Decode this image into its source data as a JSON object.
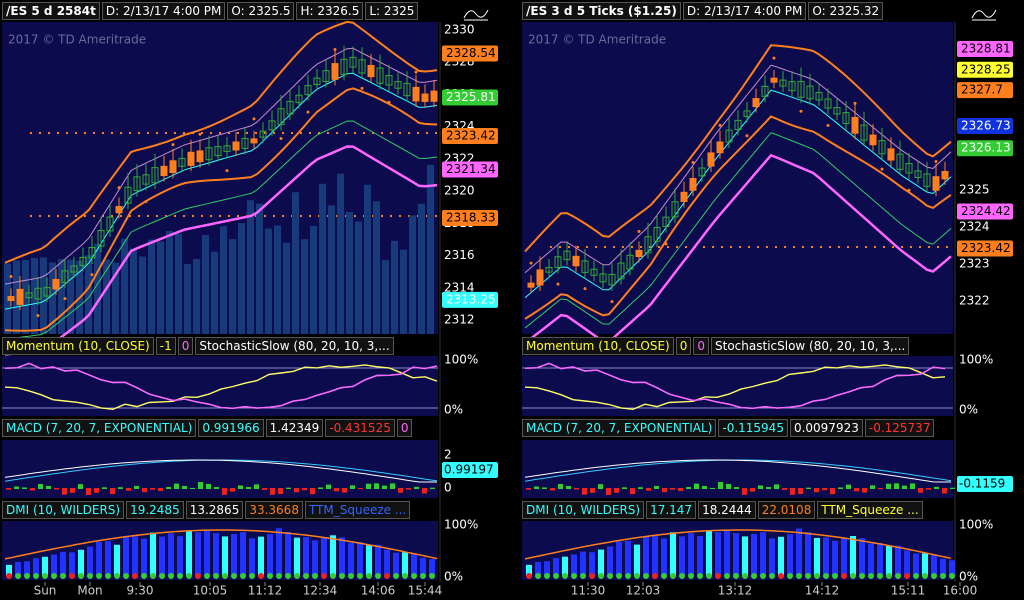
{
  "panels": [
    {
      "header": [
        "/ES 5 d 2584t",
        "D: 2/13/17 4:00 PM",
        "O: 2325.5",
        "H: 2326.5",
        "L: 2325"
      ],
      "watermark": "2017 © TD Ameritrade",
      "price_ticks": [
        "2330",
        "2328",
        "2326",
        "2324",
        "2322",
        "2320",
        "2318",
        "2316",
        "2314",
        "2312"
      ],
      "price_labels": [
        {
          "text": "2328.54",
          "color": "#ff7f1e"
        },
        {
          "text": "2325.81",
          "color": "#33cc33"
        },
        {
          "text": "2323.42",
          "color": "#ff7f1e"
        },
        {
          "text": "2321.34",
          "color": "#ff66ff"
        },
        {
          "text": "2318.33",
          "color": "#ff7f1e"
        },
        {
          "text": "2313.25",
          "color": "#33ffff"
        }
      ],
      "studies": [
        {
          "segments": [
            {
              "text": "Momentum (10, CLOSE)",
              "color": "#ffff33"
            },
            {
              "text": "-1",
              "color": "#ffff33"
            },
            {
              "text": "0",
              "color": "#ff66ff"
            },
            {
              "text": "StochasticSlow (80, 20, 10, 3,...",
              "color": "#ffffff"
            }
          ],
          "axis_labels": [
            {
              "text": "100%"
            },
            {
              "text": "0%"
            }
          ]
        },
        {
          "segments": [
            {
              "text": "MACD (7, 20, 7, EXPONENTIAL)",
              "color": "#33ffff"
            },
            {
              "text": "0.991966",
              "color": "#33ffff"
            },
            {
              "text": "1.42349",
              "color": "#ffffff"
            },
            {
              "text": "-0.431525",
              "color": "#ff3333"
            },
            {
              "text": "0",
              "color": "#ff66ff"
            }
          ],
          "axis_labels": [
            {
              "text": "2"
            },
            {
              "text": "0"
            },
            {
              "text": "0.99197",
              "box": "#33ffff"
            }
          ]
        },
        {
          "segments": [
            {
              "text": "DMI (10, WILDERS)",
              "color": "#33ffff"
            },
            {
              "text": "19.2485",
              "color": "#33ffff"
            },
            {
              "text": "13.2865",
              "color": "#ffffff"
            },
            {
              "text": "33.3668",
              "color": "#ff7f1e"
            },
            {
              "text": "TTM_Squeeze ...",
              "color": "#3366ff"
            }
          ],
          "axis_labels": [
            {
              "text": "100%"
            },
            {
              "text": "0%"
            }
          ]
        }
      ],
      "time_labels": [
        "Sun",
        "Mon",
        "9:30",
        "10:05",
        "11:12",
        "12:34",
        "14:06",
        "15:44"
      ]
    },
    {
      "header": [
        "/ES 3 d 5 Ticks ($1.25)",
        "D: 2/13/17 4:00 PM",
        "O: 2325.32"
      ],
      "watermark": "2017 © TD Ameritrade",
      "price_ticks": [
        "2325",
        "2324",
        "2323",
        "2322"
      ],
      "price_labels": [
        {
          "text": "2328.81",
          "color": "#ff66ff"
        },
        {
          "text": "2328.25",
          "color": "#ffff33"
        },
        {
          "text": "2327.7",
          "color": "#ff7f1e"
        },
        {
          "text": "2326.73",
          "color": "#1133dd"
        },
        {
          "text": "2326.13",
          "color": "#33cc33"
        },
        {
          "text": "2324.42",
          "color": "#ff66ff"
        },
        {
          "text": "2323.42",
          "color": "#ff7f1e"
        }
      ],
      "studies": [
        {
          "segments": [
            {
              "text": "Momentum (10, CLOSE)",
              "color": "#ffff33"
            },
            {
              "text": "0",
              "color": "#ffff33"
            },
            {
              "text": "0",
              "color": "#ff66ff"
            },
            {
              "text": "StochasticSlow (80, 20, 10, 3,...",
              "color": "#ffffff"
            }
          ],
          "axis_labels": [
            {
              "text": "100%"
            },
            {
              "text": "0%"
            }
          ]
        },
        {
          "segments": [
            {
              "text": "MACD (7, 20, 7, EXPONENTIAL)",
              "color": "#33ffff"
            },
            {
              "text": "-0.115945",
              "color": "#33ffff"
            },
            {
              "text": "0.0097923",
              "color": "#ffffff"
            },
            {
              "text": "-0.125737",
              "color": "#ff3333"
            }
          ],
          "axis_labels": [
            {
              "text": "-0.1159",
              "box": "#33ffff"
            }
          ]
        },
        {
          "segments": [
            {
              "text": "DMI (10, WILDERS)",
              "color": "#33ffff"
            },
            {
              "text": "17.147",
              "color": "#33ffff"
            },
            {
              "text": "18.2444",
              "color": "#ffffff"
            },
            {
              "text": "22.0108",
              "color": "#ff7f1e"
            },
            {
              "text": "TTM_Squeeze ...",
              "color": "#ffff33"
            }
          ],
          "axis_labels": [
            {
              "text": "100%"
            },
            {
              "text": "0%"
            }
          ]
        }
      ],
      "time_labels": [
        "11:30",
        "12:03",
        "13:12",
        "14:12",
        "15:11",
        "16:00"
      ]
    }
  ]
}
